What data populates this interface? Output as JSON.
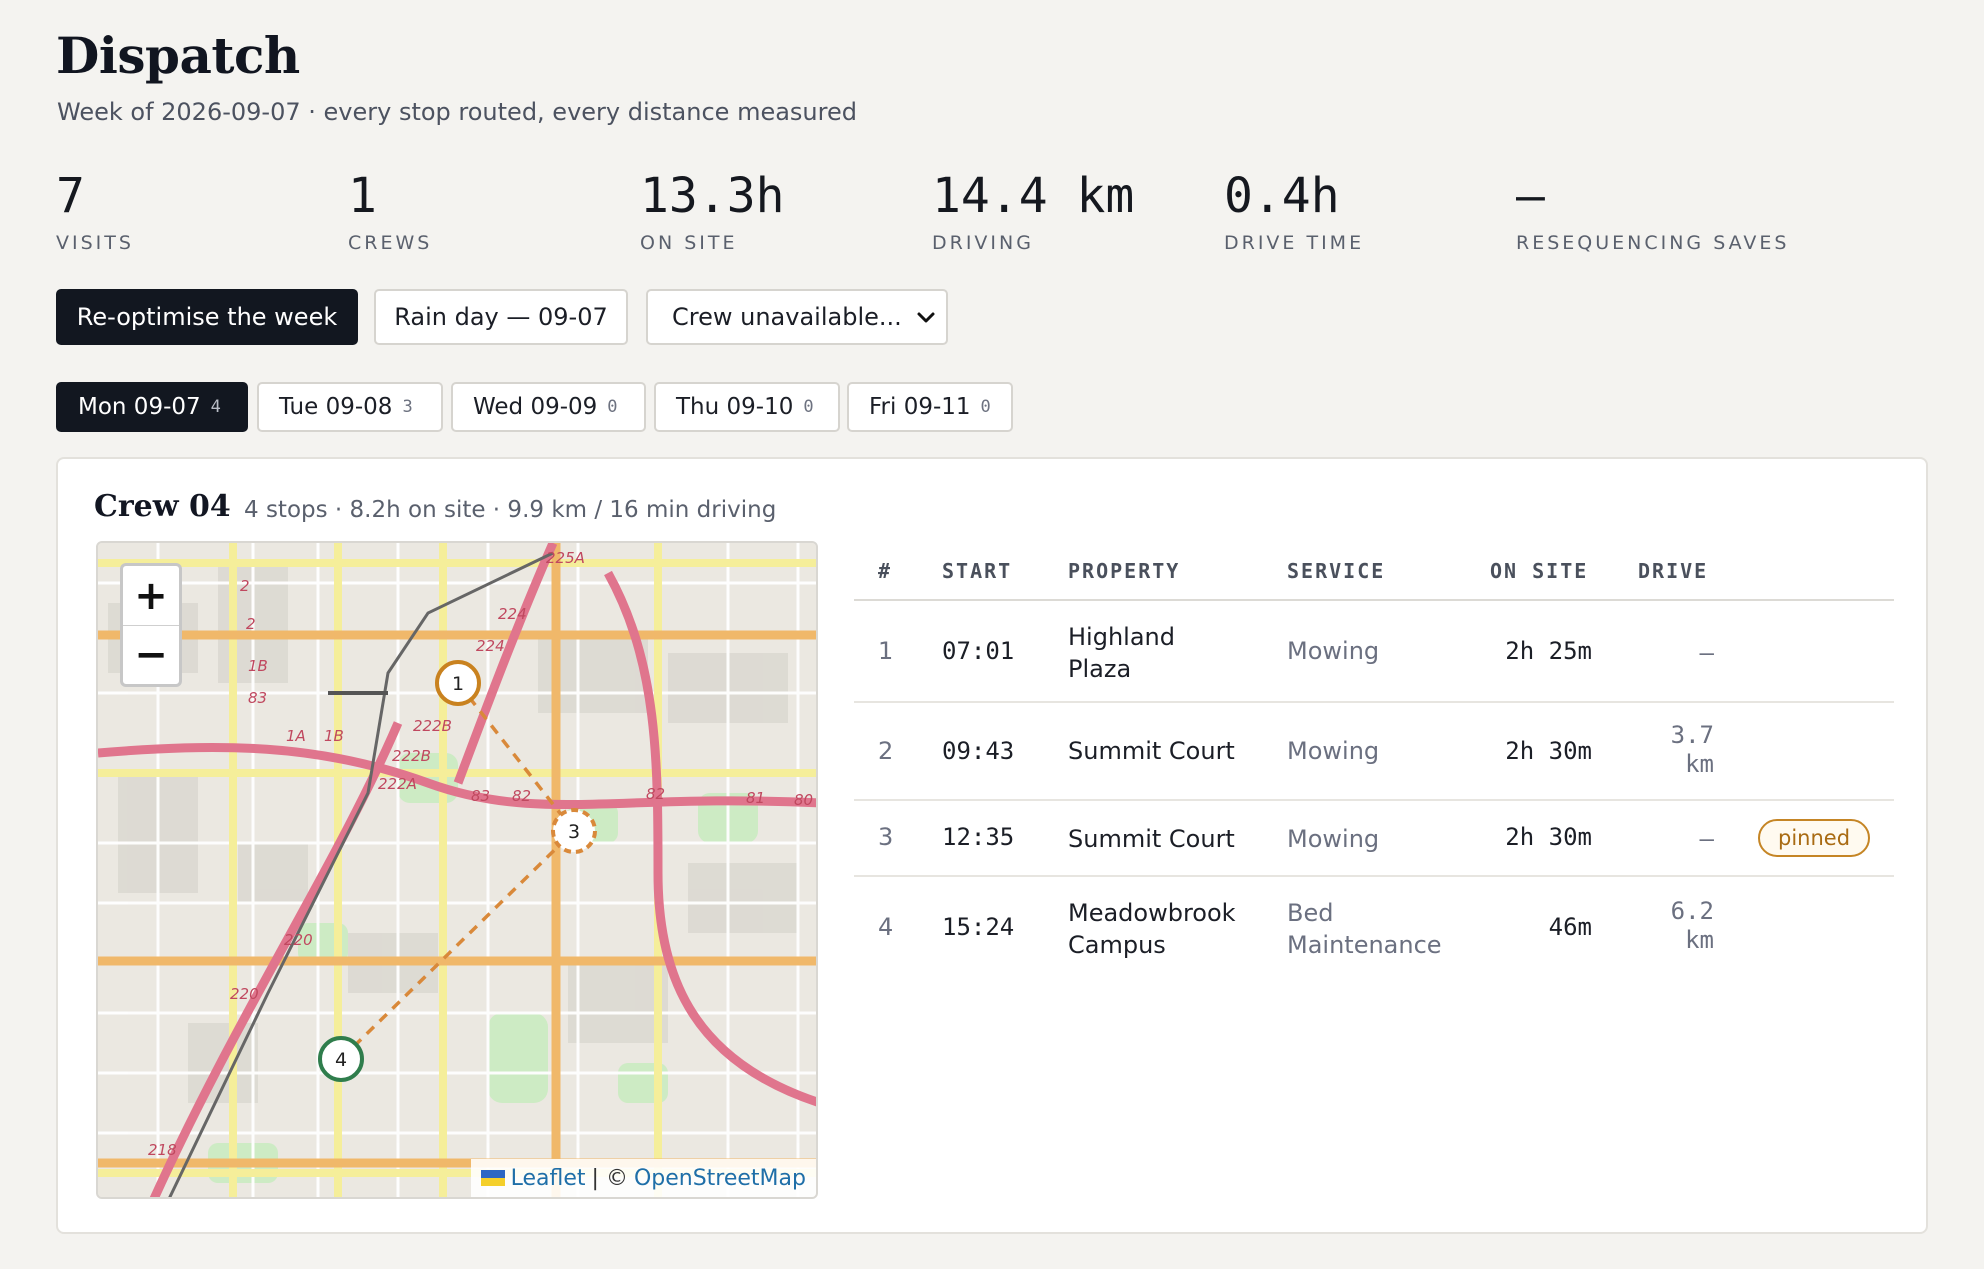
{
  "header": {
    "title": "Dispatch",
    "subtitle": "Week of 2026-09-07 · every stop routed, every distance measured"
  },
  "stats": [
    {
      "value": "7",
      "label": "VISITS"
    },
    {
      "value": "1",
      "label": "CREWS"
    },
    {
      "value": "13.3h",
      "label": "ON SITE"
    },
    {
      "value": "14.4 km",
      "label": "DRIVING"
    },
    {
      "value": "0.4h",
      "label": "DRIVE TIME"
    },
    {
      "value": "—",
      "label": "RESEQUENCING SAVES"
    }
  ],
  "actions": {
    "reoptimise": "Re-optimise the week",
    "rain_day": "Rain day — 09-07",
    "crew_select": "Crew unavailable..."
  },
  "days": [
    {
      "label": "Mon 09-07",
      "count": "4",
      "active": true
    },
    {
      "label": "Tue 09-08",
      "count": "3",
      "active": false
    },
    {
      "label": "Wed 09-09",
      "count": "0",
      "active": false
    },
    {
      "label": "Thu 09-10",
      "count": "0",
      "active": false
    },
    {
      "label": "Fri 09-11",
      "count": "0",
      "active": false
    }
  ],
  "crew": {
    "title": "Crew 04",
    "meta": "4 stops · 8.2h on site · 9.9 km / 16 min driving"
  },
  "map": {
    "zoom_in": "+",
    "zoom_out": "−",
    "attribution_leaflet": "Leaflet",
    "attribution_sep": "| ©",
    "attribution_osm": "OpenStreetMap",
    "route_color": "#d9893a",
    "markers": [
      {
        "label": "1",
        "color": "#c9821f"
      },
      {
        "label": "3",
        "color": "#d9893a"
      },
      {
        "label": "4",
        "color": "#2f7d4c"
      }
    ],
    "road_labels": [
      "225A",
      "224",
      "224",
      "2",
      "2",
      "1B",
      "83",
      "1A",
      "1B",
      "222B",
      "222B",
      "222A",
      "83",
      "82",
      "82",
      "81",
      "80",
      "220",
      "220",
      "218"
    ]
  },
  "table": {
    "headers": [
      "#",
      "START",
      "PROPERTY",
      "SERVICE",
      "ON SITE",
      "DRIVE"
    ],
    "rows": [
      {
        "num": "1",
        "start": "07:01",
        "property": [
          "Highland",
          "Plaza"
        ],
        "service": [
          "Mowing"
        ],
        "on_site": "2h 25m",
        "drive": [
          "—"
        ],
        "badge": ""
      },
      {
        "num": "2",
        "start": "09:43",
        "property": [
          "Summit Court"
        ],
        "service": [
          "Mowing"
        ],
        "on_site": "2h 30m",
        "drive": [
          "3.7",
          "km"
        ],
        "badge": ""
      },
      {
        "num": "3",
        "start": "12:35",
        "property": [
          "Summit Court"
        ],
        "service": [
          "Mowing"
        ],
        "on_site": "2h 30m",
        "drive": [
          "—"
        ],
        "badge": "pinned"
      },
      {
        "num": "4",
        "start": "15:24",
        "property": [
          "Meadowbrook",
          "Campus"
        ],
        "service": [
          "Bed",
          "Maintenance"
        ],
        "on_site": "46m",
        "drive": [
          "6.2",
          "km"
        ],
        "badge": ""
      }
    ]
  }
}
